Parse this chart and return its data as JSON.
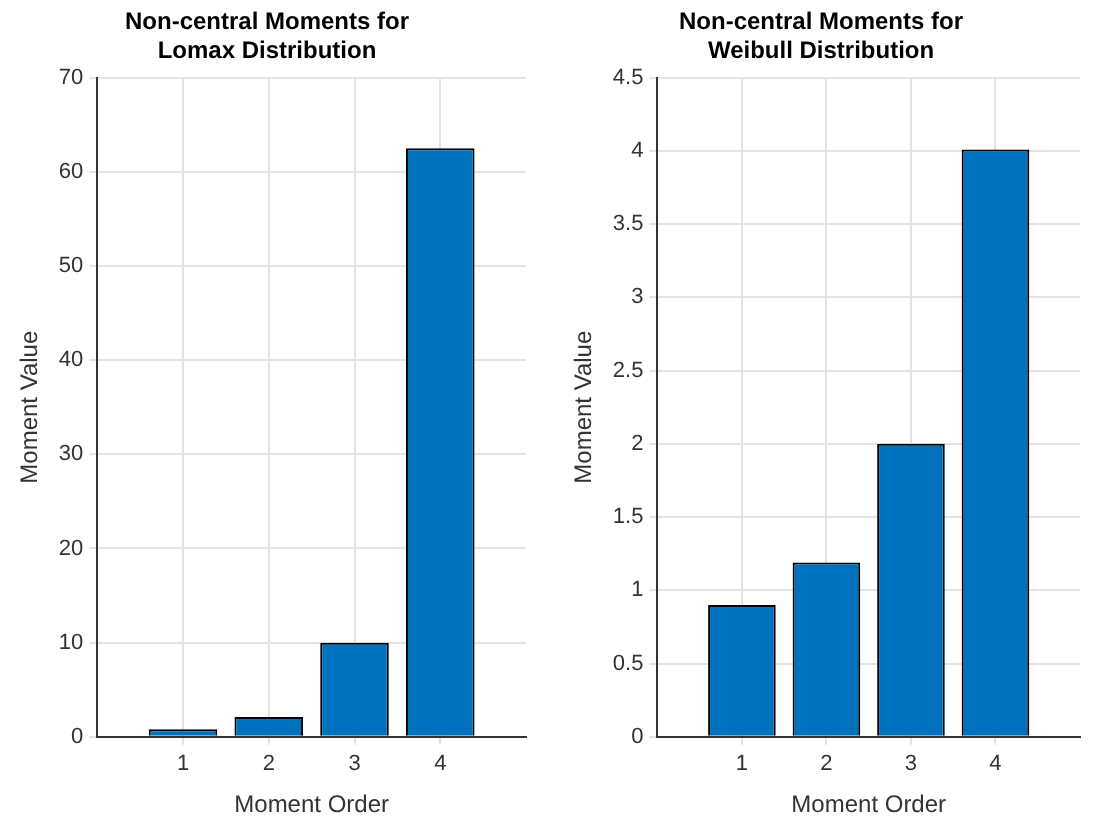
{
  "chart_data": [
    {
      "type": "bar",
      "title": "Non-central Moments for Lomax Distribution",
      "xlabel": "Moment Order",
      "ylabel": "Moment Value",
      "x": [
        1,
        2,
        3,
        4
      ],
      "values": [
        0.8,
        2.1,
        10,
        62.5
      ],
      "color": "#0072bd",
      "xlim": [
        0,
        5
      ],
      "xticks": [
        1,
        2,
        3,
        4
      ],
      "ylim": [
        0,
        70
      ],
      "yticks": [
        0,
        10,
        20,
        30,
        40,
        50,
        60,
        70
      ],
      "grid": true
    },
    {
      "type": "bar",
      "title": "Non-central Moments for Weibull Distribution",
      "xlabel": "Moment Order",
      "ylabel": "Moment Value",
      "x": [
        1,
        2,
        3,
        4
      ],
      "values": [
        0.9,
        1.19,
        2.0,
        4.01
      ],
      "color": "#0072bd",
      "xlim": [
        0,
        5
      ],
      "xticks": [
        1,
        2,
        3,
        4
      ],
      "ylim": [
        0,
        4.5
      ],
      "yticks": [
        0,
        0.5,
        1,
        1.5,
        2,
        2.5,
        3,
        3.5,
        4,
        4.5
      ],
      "grid": true
    }
  ]
}
